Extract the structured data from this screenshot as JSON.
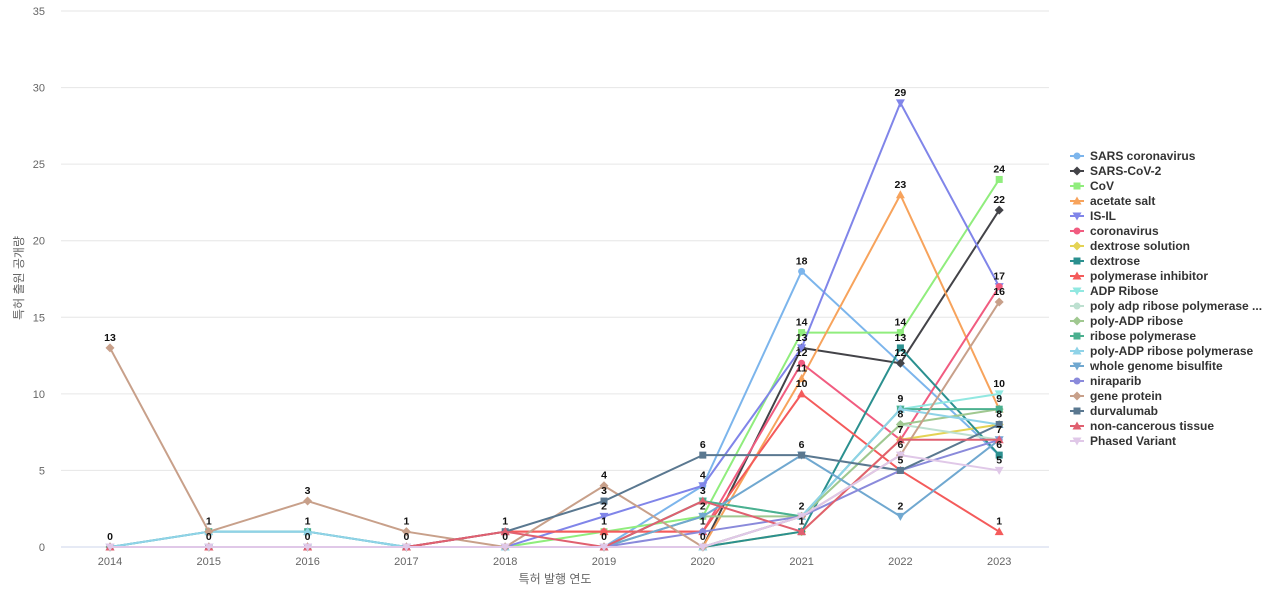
{
  "chart_data": {
    "type": "line",
    "xlabel": "특허 발행 연도",
    "ylabel": "특허 출원 공개량",
    "ylim": [
      0,
      35
    ],
    "yticks": [
      0,
      5,
      10,
      15,
      20,
      25,
      30,
      35
    ],
    "categories": [
      "2014",
      "2015",
      "2016",
      "2017",
      "2018",
      "2019",
      "2020",
      "2021",
      "2022",
      "2023"
    ],
    "legend_position": "right",
    "series": [
      {
        "name": "SARS coronavirus",
        "color": "#7cb5ec",
        "marker": "circle",
        "values": [
          0,
          1,
          1,
          0,
          0,
          0,
          4,
          18,
          12,
          6
        ]
      },
      {
        "name": "SARS-CoV-2",
        "color": "#434348",
        "marker": "diamond",
        "values": [
          0,
          0,
          0,
          0,
          0,
          0,
          0,
          13,
          12,
          22
        ]
      },
      {
        "name": "CoV",
        "color": "#90ed7d",
        "marker": "square",
        "values": [
          0,
          0,
          0,
          0,
          0,
          1,
          2,
          14,
          14,
          24
        ]
      },
      {
        "name": "acetate salt",
        "color": "#f7a35c",
        "marker": "triangle",
        "values": [
          0,
          0,
          0,
          0,
          0,
          0,
          0,
          11,
          23,
          9
        ]
      },
      {
        "name": "IS-IL",
        "color": "#8085e9",
        "marker": "triangle-down",
        "values": [
          0,
          0,
          0,
          0,
          0,
          2,
          4,
          13,
          29,
          17
        ]
      },
      {
        "name": "coronavirus",
        "color": "#f15c80",
        "marker": "circle",
        "values": [
          0,
          0,
          0,
          0,
          1,
          1,
          1,
          12,
          7,
          17
        ]
      },
      {
        "name": "dextrose solution",
        "color": "#e4d354",
        "marker": "diamond",
        "values": [
          0,
          0,
          0,
          0,
          0,
          0,
          0,
          1,
          7,
          8
        ]
      },
      {
        "name": "dextrose",
        "color": "#2b908f",
        "marker": "square",
        "values": [
          0,
          0,
          0,
          0,
          0,
          0,
          0,
          1,
          13,
          6
        ]
      },
      {
        "name": "polymerase inhibitor",
        "color": "#f45b5b",
        "marker": "triangle",
        "values": [
          0,
          0,
          0,
          0,
          1,
          1,
          1,
          10,
          5,
          1
        ]
      },
      {
        "name": "ADP Ribose",
        "color": "#91e8e1",
        "marker": "triangle-down",
        "values": [
          0,
          0,
          0,
          0,
          0,
          0,
          3,
          2,
          9,
          10
        ]
      },
      {
        "name": "poly adp ribose polymerase ...",
        "color": "#bde0d0",
        "marker": "circle",
        "values": [
          0,
          0,
          0,
          0,
          0,
          0,
          0,
          2,
          8,
          7
        ]
      },
      {
        "name": "poly-ADP ribose",
        "color": "#a0c890",
        "marker": "diamond",
        "values": [
          0,
          0,
          0,
          0,
          0,
          0,
          2,
          2,
          8,
          9
        ]
      },
      {
        "name": "ribose polymerase",
        "color": "#4bb08f",
        "marker": "square",
        "values": [
          0,
          1,
          1,
          0,
          0,
          0,
          3,
          2,
          9,
          9
        ]
      },
      {
        "name": "poly-ADP ribose polymerase",
        "color": "#8fd3e8",
        "marker": "triangle",
        "values": [
          0,
          1,
          1,
          0,
          0,
          0,
          0,
          2,
          9,
          8
        ]
      },
      {
        "name": "whole genome bisulfite",
        "color": "#70a8d0",
        "marker": "triangle-down",
        "values": [
          0,
          0,
          0,
          0,
          0,
          0,
          2,
          6,
          2,
          7
        ]
      },
      {
        "name": "niraparib",
        "color": "#8a8adb",
        "marker": "circle",
        "values": [
          0,
          0,
          0,
          0,
          0,
          0,
          1,
          2,
          5,
          7
        ]
      },
      {
        "name": "gene protein",
        "color": "#c8a08a",
        "marker": "diamond",
        "values": [
          13,
          1,
          3,
          1,
          0,
          4,
          0,
          2,
          6,
          16
        ]
      },
      {
        "name": "durvalumab",
        "color": "#5a7890",
        "marker": "square",
        "values": [
          0,
          0,
          0,
          0,
          1,
          3,
          6,
          6,
          5,
          8
        ]
      },
      {
        "name": "non-cancerous tissue",
        "color": "#e06070",
        "marker": "triangle",
        "values": [
          0,
          0,
          0,
          0,
          1,
          0,
          3,
          1,
          7,
          7
        ]
      },
      {
        "name": "Phased Variant",
        "color": "#e0c8e8",
        "marker": "triangle-down",
        "values": [
          0,
          0,
          0,
          0,
          0,
          0,
          0,
          2,
          6,
          5
        ]
      }
    ],
    "data_labels": [
      {
        "x": "2014",
        "y": 13,
        "text": "13"
      },
      {
        "x": "2014",
        "y": 0,
        "text": "0"
      },
      {
        "x": "2015",
        "y": 1,
        "text": "1"
      },
      {
        "x": "2015",
        "y": 0,
        "text": "0"
      },
      {
        "x": "2016",
        "y": 3,
        "text": "3"
      },
      {
        "x": "2016",
        "y": 1,
        "text": "1"
      },
      {
        "x": "2016",
        "y": 0,
        "text": "0"
      },
      {
        "x": "2017",
        "y": 1,
        "text": "1"
      },
      {
        "x": "2017",
        "y": 0,
        "text": "0"
      },
      {
        "x": "2018",
        "y": 1,
        "text": "1"
      },
      {
        "x": "2018",
        "y": 0,
        "text": "0"
      },
      {
        "x": "2019",
        "y": 4,
        "text": "4"
      },
      {
        "x": "2019",
        "y": 3,
        "text": "3"
      },
      {
        "x": "2019",
        "y": 2,
        "text": "2"
      },
      {
        "x": "2019",
        "y": 1,
        "text": "1"
      },
      {
        "x": "2019",
        "y": 0,
        "text": "0"
      },
      {
        "x": "2020",
        "y": 6,
        "text": "6"
      },
      {
        "x": "2020",
        "y": 4,
        "text": "4"
      },
      {
        "x": "2020",
        "y": 3,
        "text": "3"
      },
      {
        "x": "2020",
        "y": 2,
        "text": "2"
      },
      {
        "x": "2020",
        "y": 1,
        "text": "1"
      },
      {
        "x": "2020",
        "y": 0,
        "text": "0"
      },
      {
        "x": "2021",
        "y": 18,
        "text": "18"
      },
      {
        "x": "2021",
        "y": 14,
        "text": "14"
      },
      {
        "x": "2021",
        "y": 13,
        "text": "13"
      },
      {
        "x": "2021",
        "y": 12,
        "text": "12"
      },
      {
        "x": "2021",
        "y": 11,
        "text": "11"
      },
      {
        "x": "2021",
        "y": 10,
        "text": "10"
      },
      {
        "x": "2021",
        "y": 6,
        "text": "6"
      },
      {
        "x": "2021",
        "y": 2,
        "text": "2"
      },
      {
        "x": "2021",
        "y": 1,
        "text": "1"
      },
      {
        "x": "2022",
        "y": 29,
        "text": "29"
      },
      {
        "x": "2022",
        "y": 23,
        "text": "23"
      },
      {
        "x": "2022",
        "y": 14,
        "text": "14"
      },
      {
        "x": "2022",
        "y": 13,
        "text": "13"
      },
      {
        "x": "2022",
        "y": 12,
        "text": "12"
      },
      {
        "x": "2022",
        "y": 9,
        "text": "9"
      },
      {
        "x": "2022",
        "y": 8,
        "text": "8"
      },
      {
        "x": "2022",
        "y": 7,
        "text": "7"
      },
      {
        "x": "2022",
        "y": 6,
        "text": "6"
      },
      {
        "x": "2022",
        "y": 5,
        "text": "5"
      },
      {
        "x": "2022",
        "y": 2,
        "text": "2"
      },
      {
        "x": "2023",
        "y": 24,
        "text": "24"
      },
      {
        "x": "2023",
        "y": 22,
        "text": "22"
      },
      {
        "x": "2023",
        "y": 17,
        "text": "17"
      },
      {
        "x": "2023",
        "y": 16,
        "text": "16"
      },
      {
        "x": "2023",
        "y": 10,
        "text": "10"
      },
      {
        "x": "2023",
        "y": 9,
        "text": "9"
      },
      {
        "x": "2023",
        "y": 8,
        "text": "8"
      },
      {
        "x": "2023",
        "y": 7,
        "text": "7"
      },
      {
        "x": "2023",
        "y": 6,
        "text": "6"
      },
      {
        "x": "2023",
        "y": 5,
        "text": "5"
      },
      {
        "x": "2023",
        "y": 1,
        "text": "1"
      }
    ]
  }
}
